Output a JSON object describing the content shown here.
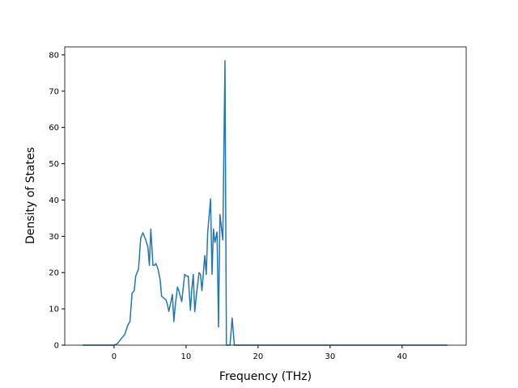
{
  "chart_data": {
    "type": "line",
    "xlabel": "Frequency (THz)",
    "ylabel": "Density of States",
    "x": [
      -4.4,
      0,
      0.45,
      1.0,
      1.5,
      1.9,
      2.2,
      2.5,
      2.8,
      3.0,
      3.4,
      3.7,
      4.0,
      4.4,
      4.7,
      4.9,
      5.1,
      5.4,
      5.6,
      5.8,
      6.1,
      6.4,
      6.6,
      6.9,
      7.2,
      7.4,
      7.6,
      7.9,
      8.1,
      8.3,
      8.5,
      8.8,
      9.0,
      9.2,
      9.4,
      9.8,
      10.1,
      10.3,
      10.6,
      10.8,
      11.0,
      11.2,
      11.5,
      11.8,
      12.0,
      12.2,
      12.6,
      12.8,
      13.0,
      13.4,
      13.6,
      13.8,
      14.0,
      14.3,
      14.5,
      14.7,
      15.1,
      15.4,
      15.6,
      16.1,
      16.4,
      16.7,
      46.3
    ],
    "series": [
      {
        "color": "#1f77b4",
        "values": [
          0,
          0,
          0.4,
          1.8,
          3,
          5.5,
          6.5,
          14.3,
          15,
          19,
          21,
          29.5,
          31,
          29,
          27,
          22,
          32,
          22,
          22,
          22.5,
          21,
          18,
          13.5,
          13,
          12.5,
          11.3,
          9.3,
          12,
          14,
          6.5,
          11,
          16,
          15,
          13.5,
          12,
          19.5,
          19,
          19,
          9.6,
          15.5,
          19.5,
          9.2,
          15,
          20,
          19.5,
          15,
          24.7,
          19.5,
          31,
          40.3,
          19.5,
          32,
          28.3,
          31.2,
          5,
          36,
          29,
          78.4,
          0,
          0,
          7.5,
          0,
          0
        ]
      }
    ],
    "xlim": [
      -6.85,
      48.9
    ],
    "ylim": [
      0,
      82.2
    ],
    "xticks": [
      0,
      10,
      20,
      30,
      40
    ],
    "yticks": [
      0,
      10,
      20,
      30,
      40,
      50,
      60,
      70,
      80
    ],
    "grid": false
  }
}
